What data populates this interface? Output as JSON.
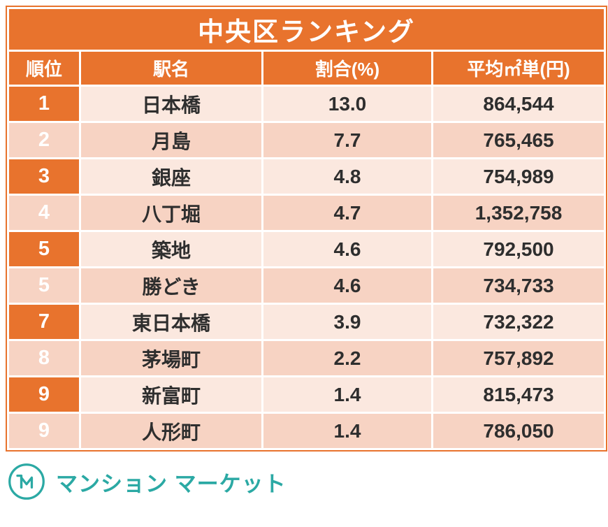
{
  "chart_data": {
    "type": "table",
    "title": "中央区ランキング",
    "columns": [
      "順位",
      "駅名",
      "割合(%)",
      "平均㎡単(円)"
    ],
    "rows": [
      [
        "1",
        "日本橋",
        "13.0",
        "864,544"
      ],
      [
        "2",
        "月島",
        "7.7",
        "765,465"
      ],
      [
        "3",
        "銀座",
        "4.8",
        "754,989"
      ],
      [
        "4",
        "八丁堀",
        "4.7",
        "1,352,758"
      ],
      [
        "5",
        "築地",
        "4.6",
        "792,500"
      ],
      [
        "5",
        "勝どき",
        "4.6",
        "734,733"
      ],
      [
        "7",
        "東日本橋",
        "3.9",
        "732,322"
      ],
      [
        "8",
        "茅場町",
        "2.2",
        "757,892"
      ],
      [
        "9",
        "新富町",
        "1.4",
        "815,473"
      ],
      [
        "9",
        "人形町",
        "1.4",
        "786,050"
      ]
    ]
  },
  "footer": {
    "brand": "マンション マーケット"
  },
  "colors": {
    "orange": "#E8732D",
    "row_light": "#FBE8DF",
    "row_dark": "#F7D3C3",
    "text": "#2E2E2E",
    "teal": "#2BA9A4"
  }
}
